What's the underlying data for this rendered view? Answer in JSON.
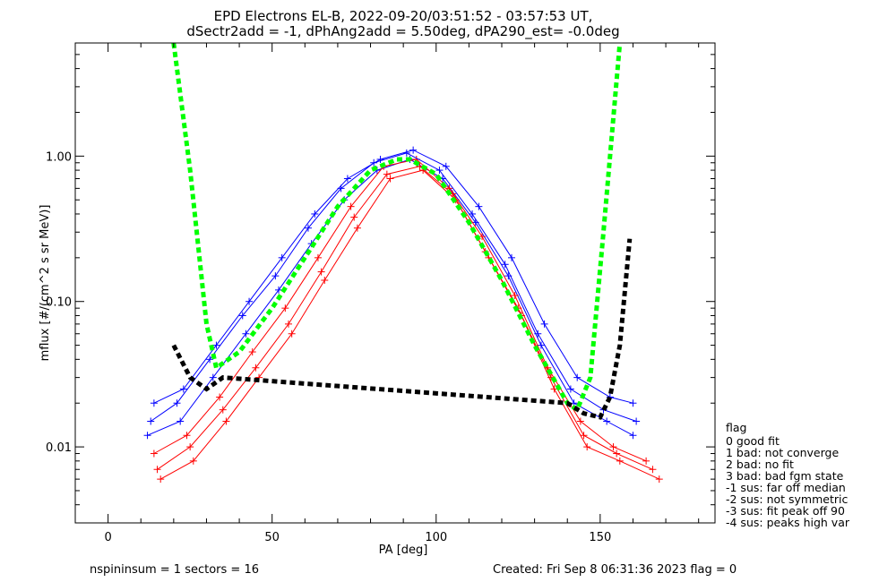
{
  "chart_data": {
    "type": "line",
    "title": "EPD Electrons EL-B, 2022-09-20/03:51:52 - 03:57:53 UT,",
    "subtitle": "dSectr2add = -1, dPhAng2add = 5.50deg, dPA290_est=  -0.0deg",
    "xlabel": "PA [deg]",
    "ylabel": "mflux [#/(cm^2 s sr MeV)]",
    "xlim": [
      -10,
      185
    ],
    "ylim": [
      0.003,
      6.0
    ],
    "yscale": "log",
    "xticks": [
      {
        "v": 0,
        "label": "0"
      },
      {
        "v": 50,
        "label": "50"
      },
      {
        "v": 100,
        "label": "100"
      },
      {
        "v": 150,
        "label": "150"
      }
    ],
    "yticks": [
      {
        "v": 0.01,
        "label": "0.01"
      },
      {
        "v": 0.1,
        "label": "0.10"
      },
      {
        "v": 1.0,
        "label": "1.00"
      }
    ],
    "series": [
      {
        "color": "#0000ff",
        "style": "solid",
        "x": [
          12,
          22,
          32,
          42,
          52,
          62,
          72,
          82,
          92,
          102,
          112,
          122,
          132,
          142,
          152,
          160
        ],
        "y": [
          0.012,
          0.015,
          0.03,
          0.06,
          0.12,
          0.25,
          0.5,
          0.8,
          0.95,
          0.7,
          0.35,
          0.15,
          0.05,
          0.02,
          0.015,
          0.012
        ]
      },
      {
        "color": "#ff0000",
        "style": "solid",
        "x": [
          14,
          24,
          34,
          44,
          54,
          64,
          74,
          84,
          94,
          104,
          114,
          124,
          134,
          144,
          154,
          164
        ],
        "y": [
          0.009,
          0.012,
          0.022,
          0.045,
          0.09,
          0.2,
          0.45,
          0.85,
          0.95,
          0.6,
          0.28,
          0.11,
          0.035,
          0.015,
          0.01,
          0.008
        ]
      },
      {
        "color": "#0000ff",
        "style": "solid",
        "x": [
          13,
          21,
          31,
          41,
          51,
          61,
          71,
          81,
          91,
          101,
          111,
          121,
          131,
          141,
          151,
          161
        ],
        "y": [
          0.015,
          0.02,
          0.04,
          0.08,
          0.15,
          0.32,
          0.6,
          0.9,
          1.05,
          0.8,
          0.4,
          0.18,
          0.06,
          0.025,
          0.018,
          0.015
        ]
      },
      {
        "color": "#ff0000",
        "style": "solid",
        "x": [
          15,
          25,
          35,
          45,
          55,
          65,
          75,
          85,
          95,
          105,
          115,
          125,
          135,
          145,
          155,
          166
        ],
        "y": [
          0.007,
          0.01,
          0.018,
          0.035,
          0.07,
          0.16,
          0.38,
          0.75,
          0.85,
          0.55,
          0.22,
          0.09,
          0.03,
          0.012,
          0.009,
          0.007
        ]
      },
      {
        "color": "#0000ff",
        "style": "solid",
        "x": [
          14,
          23,
          33,
          43,
          53,
          63,
          73,
          83,
          93,
          103,
          113,
          123,
          133,
          143,
          153,
          160
        ],
        "y": [
          0.02,
          0.025,
          0.05,
          0.1,
          0.2,
          0.4,
          0.7,
          0.95,
          1.1,
          0.85,
          0.45,
          0.2,
          0.07,
          0.03,
          0.022,
          0.02
        ]
      },
      {
        "color": "#ff0000",
        "style": "solid",
        "x": [
          16,
          26,
          36,
          46,
          56,
          66,
          76,
          86,
          96,
          106,
          116,
          126,
          136,
          146,
          156,
          168
        ],
        "y": [
          0.006,
          0.008,
          0.015,
          0.03,
          0.06,
          0.14,
          0.32,
          0.7,
          0.8,
          0.5,
          0.2,
          0.08,
          0.025,
          0.01,
          0.008,
          0.006
        ]
      },
      {
        "color": "#00ff00",
        "style": "fit",
        "x": [
          20,
          25,
          30,
          33,
          40,
          50,
          60,
          70,
          80,
          88,
          92,
          100,
          110,
          120,
          130,
          140,
          143,
          147,
          151,
          156
        ],
        "y": [
          6.0,
          0.8,
          0.07,
          0.035,
          0.045,
          0.09,
          0.2,
          0.45,
          0.8,
          0.95,
          0.95,
          0.75,
          0.35,
          0.14,
          0.05,
          0.02,
          0.018,
          0.03,
          0.3,
          6.0
        ]
      },
      {
        "color": "#000000",
        "style": "fit",
        "x": [
          20,
          25,
          30,
          35,
          140,
          145,
          150,
          153,
          156,
          159
        ],
        "y": [
          0.05,
          0.03,
          0.025,
          0.03,
          0.02,
          0.017,
          0.016,
          0.022,
          0.05,
          0.27
        ]
      }
    ],
    "legend_placement": "right-bottom outside",
    "legend_title": "flag",
    "legend_entries": [
      " 0 good fit",
      " 1 bad: not converge",
      " 2 bad: no fit",
      " 3 bad: bad fgm state",
      "-1 sus: far off median",
      "-2 sus: not symmetric",
      "-3 sus: fit peak off 90",
      "-4 sus: peaks high var"
    ]
  },
  "footer": {
    "left": "nspininsum =  1  sectors = 16",
    "right": "Created: Fri Sep  8 06:31:36 2023   flag = 0"
  }
}
